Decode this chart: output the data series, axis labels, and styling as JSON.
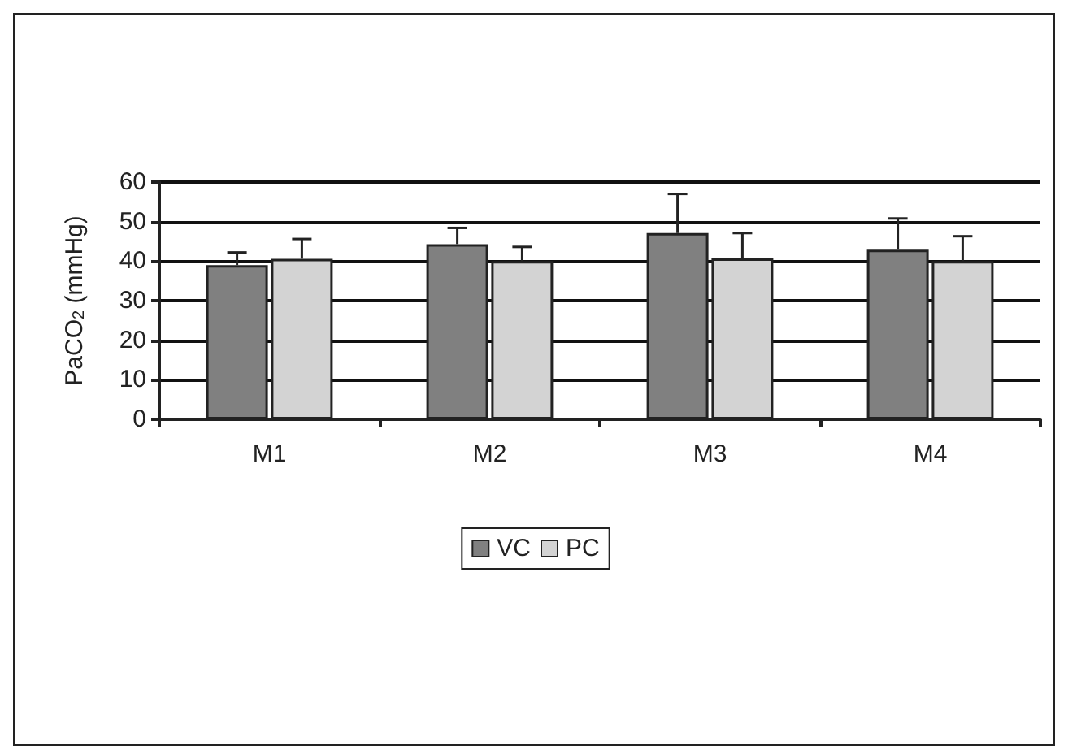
{
  "chart_data": {
    "type": "bar",
    "ylabel": "PaCO$_{2}$ (mmHg)",
    "categories": [
      "M1",
      "M2",
      "M3",
      "M4"
    ],
    "series": [
      {
        "name": "VC",
        "color": "#808080",
        "values": [
          39,
          44.3,
          47.1,
          42.9
        ],
        "errors": [
          [
            39,
            42.2
          ],
          [
            44.3,
            48.4
          ],
          [
            47.1,
            57
          ],
          [
            42.9,
            50.8
          ]
        ]
      },
      {
        "name": "PC",
        "color": "#d3d3d3",
        "values": [
          40.6,
          40,
          40.7,
          40
        ],
        "errors": [
          [
            40.6,
            45.6
          ],
          [
            40,
            43.6
          ],
          [
            40.7,
            47.1
          ],
          [
            40,
            46.3
          ]
        ]
      }
    ],
    "ylim": [
      0,
      60
    ],
    "yticks": [
      0,
      10,
      20,
      30,
      40,
      50,
      60
    ],
    "grid": "y",
    "legend": "bottom"
  }
}
